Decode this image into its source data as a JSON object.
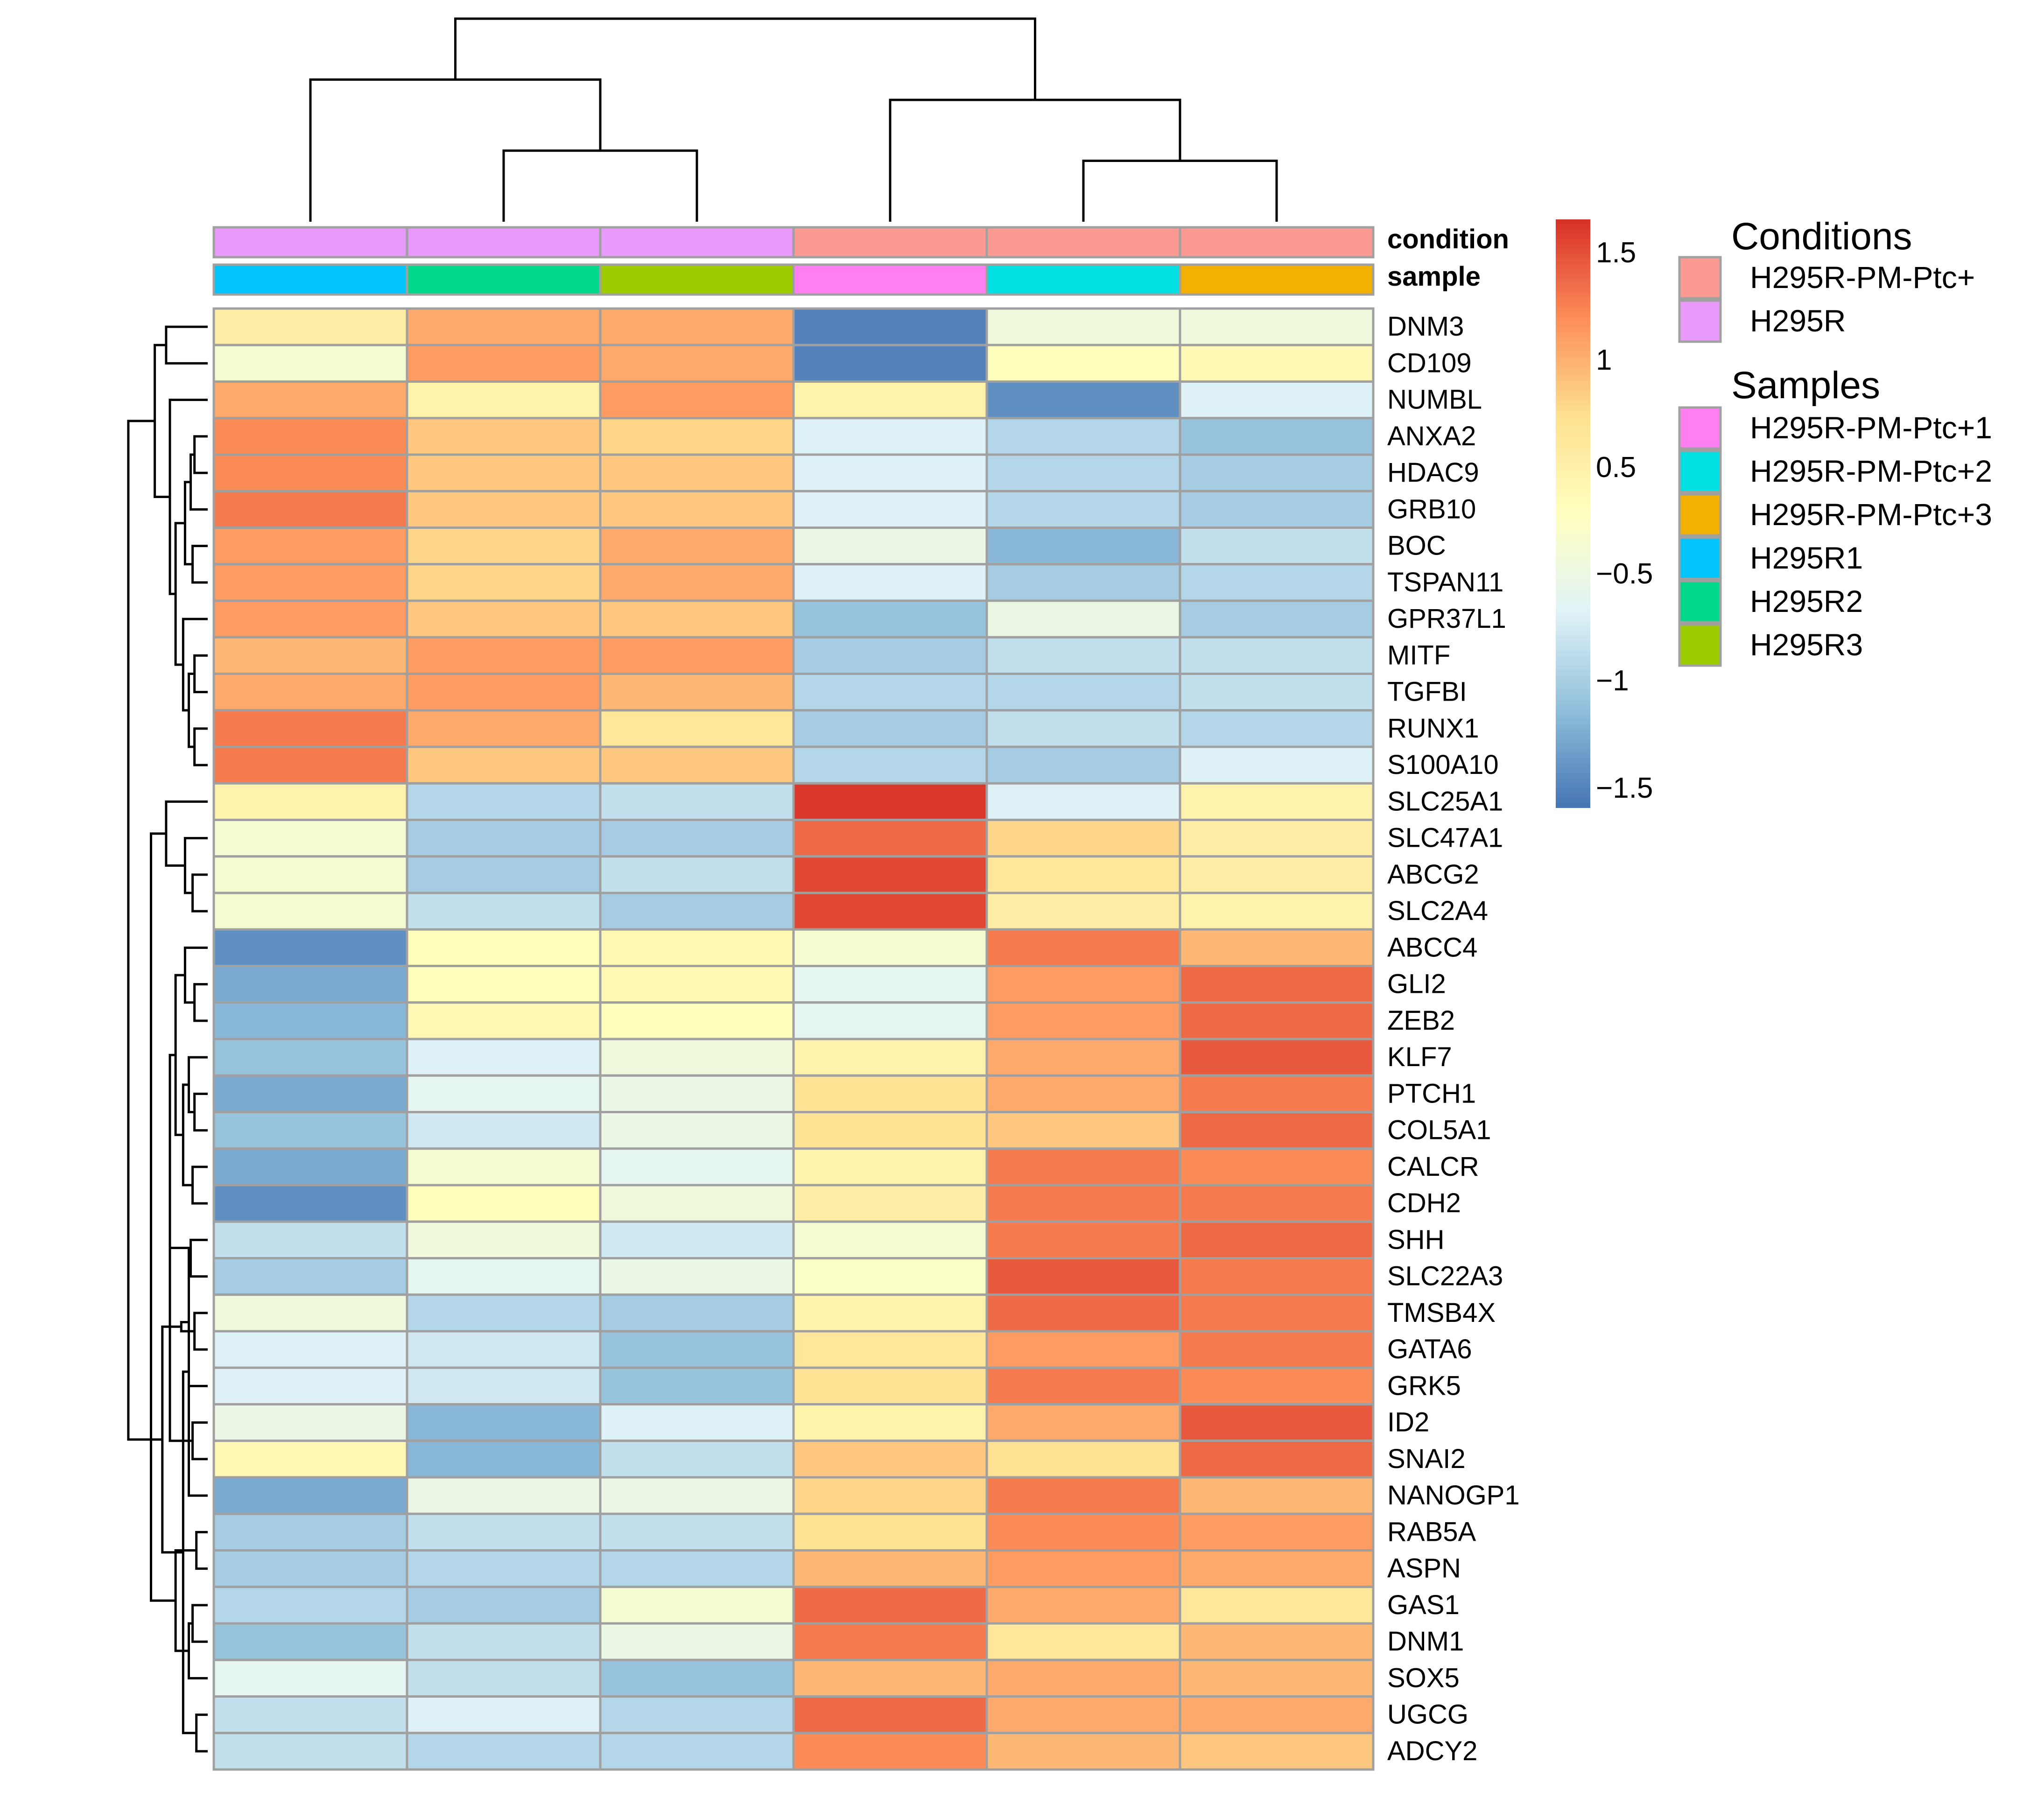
{
  "chart_data": {
    "type": "heatmap",
    "columns": [
      "H295R1",
      "H295R2",
      "H295R3",
      "H295R-PM-Ptc+1",
      "H295R-PM-Ptc+2",
      "H295R-PM-Ptc+3"
    ],
    "column_annotations": {
      "condition": [
        "H295R",
        "H295R",
        "H295R",
        "H295R-PM-Ptc+",
        "H295R-PM-Ptc+",
        "H295R-PM-Ptc+"
      ],
      "sample": [
        "H295R1",
        "H295R2",
        "H295R3",
        "H295R-PM-Ptc+1",
        "H295R-PM-Ptc+2",
        "H295R-PM-Ptc+3"
      ]
    },
    "annotation_row_labels": [
      "condition",
      "sample"
    ],
    "rows": [
      "DNM3",
      "CD109",
      "NUMBL",
      "ANXA2",
      "HDAC9",
      "GRB10",
      "BOC",
      "TSPAN11",
      "GPR37L1",
      "MITF",
      "TGFBI",
      "RUNX1",
      "S100A10",
      "SLC25A1",
      "SLC47A1",
      "ABCG2",
      "SLC2A4",
      "ABCC4",
      "GLI2",
      "ZEB2",
      "KLF7",
      "PTCH1",
      "COL5A1",
      "CALCR",
      "CDH2",
      "SHH",
      "SLC22A3",
      "TMSB4X",
      "GATA6",
      "GRK5",
      "ID2",
      "SNAI2",
      "NANOGP1",
      "RAB5A",
      "ASPN",
      "GAS1",
      "DNM1",
      "SOX5",
      "UGCG",
      "ADCY2"
    ],
    "values": [
      [
        0.3,
        0.9,
        0.9,
        -1.6,
        -0.3,
        -0.3
      ],
      [
        -0.2,
        1.0,
        0.9,
        -1.6,
        0.0,
        0.1
      ],
      [
        0.9,
        0.2,
        1.0,
        0.2,
        -1.5,
        -0.6
      ],
      [
        1.1,
        0.7,
        0.6,
        -0.6,
        -0.9,
        -1.1
      ],
      [
        1.1,
        0.7,
        0.7,
        -0.6,
        -0.9,
        -1.0
      ],
      [
        1.2,
        0.7,
        0.7,
        -0.6,
        -0.9,
        -1.0
      ],
      [
        1.0,
        0.6,
        0.9,
        -0.4,
        -1.2,
        -0.8
      ],
      [
        1.0,
        0.6,
        0.9,
        -0.6,
        -1.0,
        -0.9
      ],
      [
        1.0,
        0.7,
        0.7,
        -1.1,
        -0.4,
        -1.0
      ],
      [
        0.8,
        1.0,
        1.0,
        -1.0,
        -0.8,
        -0.8
      ],
      [
        0.9,
        1.0,
        0.8,
        -0.9,
        -0.9,
        -0.8
      ],
      [
        1.2,
        0.9,
        0.4,
        -1.0,
        -0.8,
        -0.9
      ],
      [
        1.2,
        0.7,
        0.7,
        -0.9,
        -1.0,
        -0.6
      ],
      [
        0.2,
        -0.9,
        -0.8,
        1.6,
        -0.6,
        0.2
      ],
      [
        -0.2,
        -1.0,
        -1.0,
        1.3,
        0.6,
        0.3
      ],
      [
        -0.2,
        -1.0,
        -0.8,
        1.5,
        0.4,
        0.3
      ],
      [
        -0.2,
        -0.8,
        -1.0,
        1.5,
        0.3,
        0.2
      ],
      [
        -1.5,
        0.0,
        0.1,
        -0.2,
        1.2,
        0.8
      ],
      [
        -1.3,
        0.0,
        0.1,
        -0.5,
        1.0,
        1.3
      ],
      [
        -1.2,
        0.1,
        0.0,
        -0.5,
        1.0,
        1.3
      ],
      [
        -1.1,
        -0.6,
        -0.3,
        0.2,
        0.9,
        1.4
      ],
      [
        -1.3,
        -0.5,
        -0.4,
        0.5,
        0.9,
        1.2
      ],
      [
        -1.1,
        -0.7,
        -0.4,
        0.5,
        0.7,
        1.3
      ],
      [
        -1.3,
        -0.2,
        -0.5,
        0.2,
        1.2,
        1.1
      ],
      [
        -1.5,
        0.0,
        -0.3,
        0.3,
        1.2,
        1.2
      ],
      [
        -0.8,
        -0.3,
        -0.7,
        -0.2,
        1.2,
        1.3
      ],
      [
        -1.0,
        -0.5,
        -0.4,
        -0.1,
        1.4,
        1.2
      ],
      [
        -0.3,
        -0.9,
        -1.0,
        0.2,
        1.3,
        1.2
      ],
      [
        -0.6,
        -0.7,
        -1.1,
        0.4,
        1.0,
        1.2
      ],
      [
        -0.6,
        -0.7,
        -1.1,
        0.5,
        1.2,
        1.1
      ],
      [
        -0.4,
        -1.2,
        -0.6,
        0.2,
        0.9,
        1.4
      ],
      [
        0.1,
        -1.2,
        -0.8,
        0.7,
        0.5,
        1.3
      ],
      [
        -1.3,
        -0.4,
        -0.4,
        0.6,
        1.2,
        0.8
      ],
      [
        -1.0,
        -0.8,
        -0.8,
        0.5,
        1.1,
        1.0
      ],
      [
        -1.0,
        -0.9,
        -0.9,
        0.8,
        1.0,
        0.9
      ],
      [
        -0.9,
        -1.0,
        -0.2,
        1.3,
        0.9,
        0.4
      ],
      [
        -1.1,
        -0.8,
        -0.4,
        1.2,
        0.4,
        0.8
      ],
      [
        -0.5,
        -0.8,
        -1.1,
        0.8,
        0.9,
        0.8
      ],
      [
        -0.8,
        -0.6,
        -0.9,
        1.3,
        0.9,
        0.9
      ],
      [
        -0.8,
        -0.9,
        -0.9,
        1.1,
        0.8,
        0.7
      ]
    ],
    "colorbar": {
      "range": [
        -1.7,
        1.65
      ],
      "tick_labels": [
        "1.5",
        "1",
        "0.5",
        "−0.5",
        "−1",
        "−1.5"
      ],
      "tick_values": [
        1.5,
        1.0,
        0.5,
        -0.5,
        -1.0,
        -1.5
      ],
      "colors": [
        "#4575b4",
        "#91bfdb",
        "#e0f3f8",
        "#ffffbf",
        "#fee090",
        "#fc8d59",
        "#d73027"
      ]
    },
    "legend": {
      "conditions_title": "Conditions",
      "conditions": [
        {
          "label": "H295R-PM-Ptc+",
          "color": "#fa9a92"
        },
        {
          "label": "H295R",
          "color": "#e79af9"
        }
      ],
      "samples_title": "Samples",
      "samples": [
        {
          "label": "H295R-PM-Ptc+1",
          "color": "#ff7ff0"
        },
        {
          "label": "H295R-PM-Ptc+2",
          "color": "#00e0e3"
        },
        {
          "label": "H295R-PM-Ptc+3",
          "color": "#f2b100"
        },
        {
          "label": "H295R1",
          "color": "#00c4fb"
        },
        {
          "label": "H295R2",
          "color": "#00d98b"
        },
        {
          "label": "H295R3",
          "color": "#9dcc00"
        }
      ]
    },
    "column_dendrogram": {
      "leaf_order": [
        0,
        1,
        2,
        3,
        4,
        5
      ],
      "merges": [
        [
          1,
          2,
          0.35
        ],
        [
          4,
          5,
          0.3
        ],
        [
          0,
          -1,
          0.7
        ],
        [
          3,
          -2,
          0.6
        ],
        [
          -3,
          -4,
          1.0
        ]
      ]
    },
    "row_dendrogram": {
      "leaf_order": [
        0,
        1,
        2,
        3,
        4,
        5,
        6,
        7,
        8,
        9,
        10,
        11,
        12,
        13,
        14,
        15,
        16,
        17,
        18,
        19,
        20,
        21,
        22,
        23,
        24,
        25,
        26,
        27,
        28,
        29,
        30,
        31,
        32,
        33,
        34,
        35,
        36,
        37,
        38,
        39
      ]
    }
  }
}
